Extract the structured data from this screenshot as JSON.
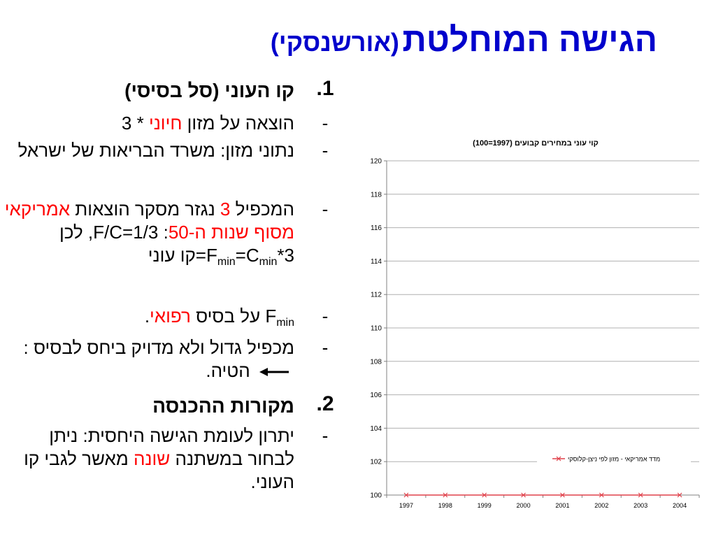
{
  "title": {
    "main": "הגישה המוחלטת",
    "paren": "(אורשנסקי)"
  },
  "body": {
    "sec1": {
      "num": "1.",
      "head": "קו העוני (סל בסיסי)"
    },
    "b1": {
      "bullet": "-",
      "a": "הוצאה על מזון ",
      "red": "חיוני",
      "b": " * 3"
    },
    "b2": {
      "bullet": "-",
      "a": "נתוני מזון: משרד הבריאות של ישראל"
    },
    "b3": {
      "bullet": "-",
      "a": "המכפיל ",
      "red1": "3",
      "b": " נגזר מסקר הוצאות ",
      "red2": "אמריקאי מסוף שנות ה-50",
      "c": ": ",
      "d": "F/C=1/3, לכן 3*",
      "f": "F",
      "min1": "min",
      "eq": "=C",
      "min2": "min",
      "e": "=קו עוני"
    },
    "b4": {
      "bullet": "-",
      "f": "F",
      "min": "min",
      "a": " על בסיס ",
      "red": "רפואי",
      "b": "."
    },
    "b5": {
      "bullet": "-",
      "a": "מכפיל גדול ולא מדויק ביחס לבסיס : ",
      "b": " הטיה."
    },
    "sec2": {
      "num": "2.",
      "head": "מקורות ההכנסה"
    },
    "b6": {
      "bullet": "-",
      "a": "יתרון לעומת הגישה היחסית: ניתן לבחור במשתנה ",
      "red": "שונה",
      "b": " מאשר לגבי קו העוני."
    }
  },
  "colors": {
    "title": "#0000cc",
    "highlight": "#ff0000",
    "series": "#e0404a"
  },
  "chart_data": {
    "type": "line",
    "title": "קוי עוני במחירים קבועים (1997=100)",
    "x": [
      "1997",
      "1998",
      "1999",
      "2000",
      "2001",
      "2002",
      "2003",
      "2004"
    ],
    "ylim": [
      100,
      120
    ],
    "yticks": [
      "100",
      "102",
      "104",
      "106",
      "108",
      "110",
      "112",
      "114",
      "116",
      "118",
      "120"
    ],
    "grid": true,
    "legend_position": "right",
    "series": [
      {
        "name": "מדד אמריקאי - מזון לפי ניצן-קלוסקי",
        "values": [
          100,
          100,
          100,
          100,
          100,
          100,
          100,
          100
        ]
      }
    ]
  }
}
